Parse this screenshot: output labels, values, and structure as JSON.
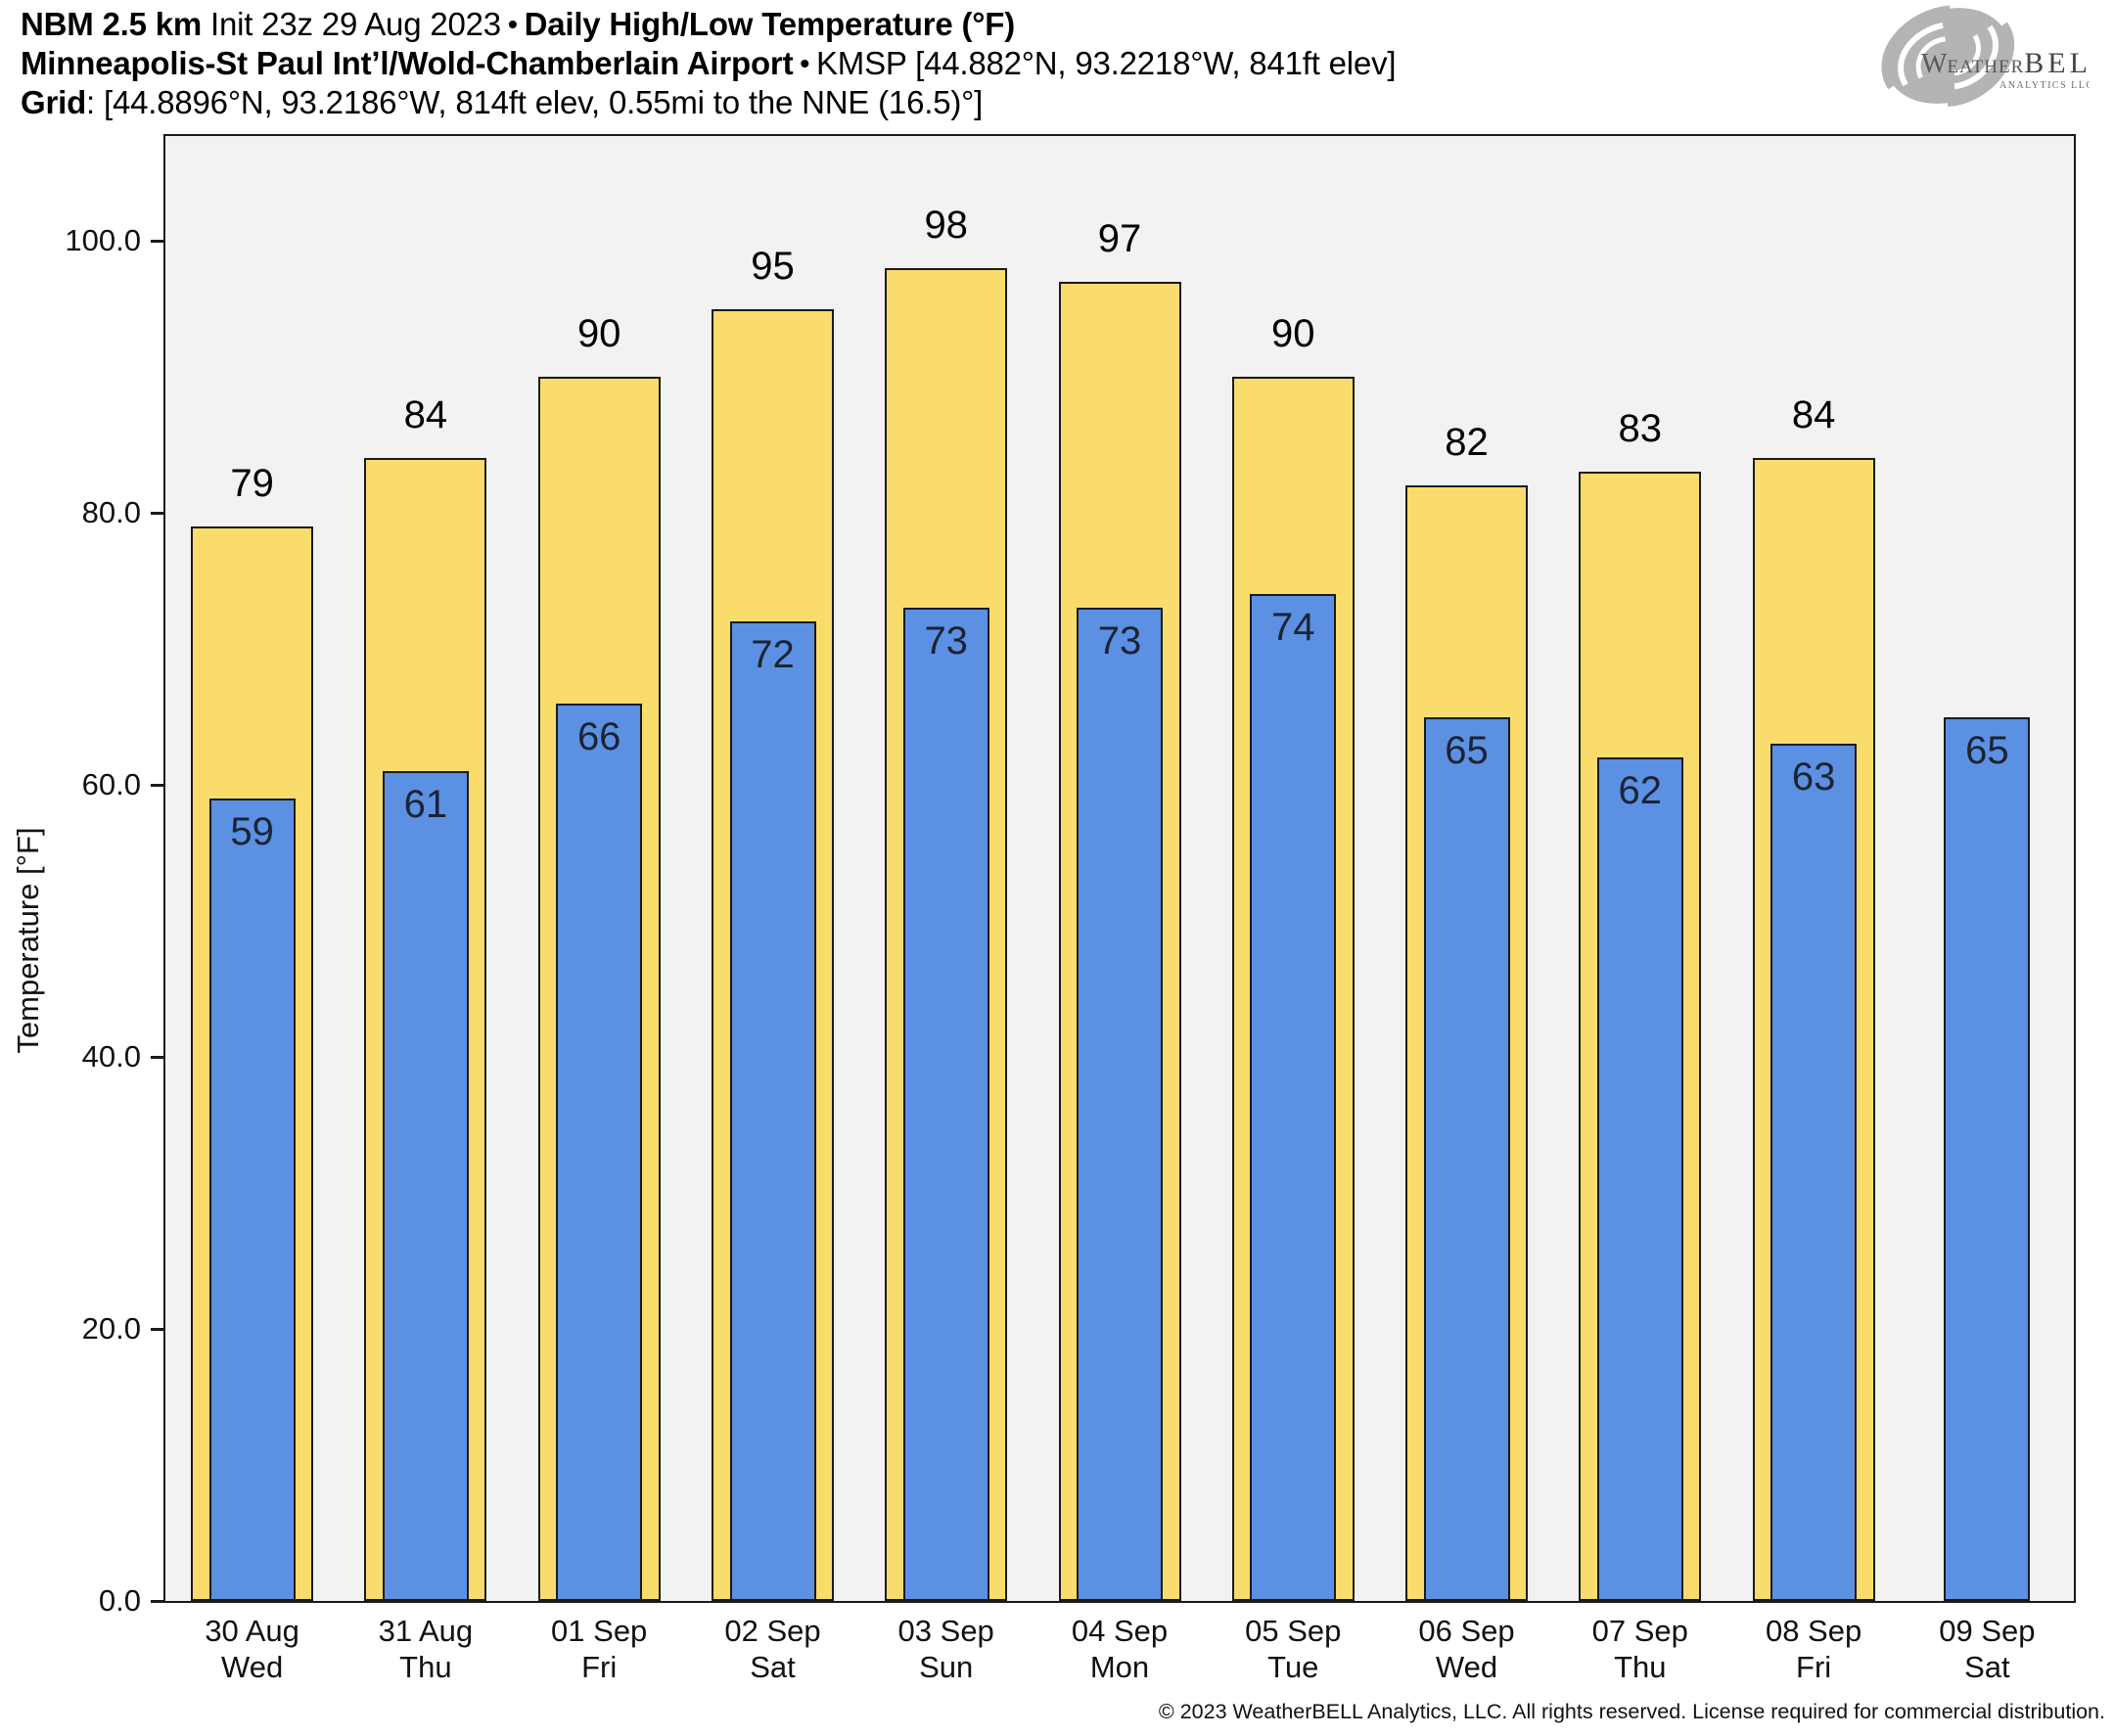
{
  "header": {
    "model": "NBM 2.5 km",
    "init": "Init 23z 29 Aug 2023",
    "bullet": "•",
    "product": "Daily High/Low Temperature (°F)",
    "station_name": "Minneapolis-St Paul Intʼl/Wold-Chamberlain Airport",
    "station_meta": "KMSP [44.882°N, 93.2218°W, 841ft elev]",
    "grid_label": "Grid",
    "grid_meta": ": [44.8896°N, 93.2186°W, 814ft elev, 0.55mi to the NNE (16.5)°]"
  },
  "logo": {
    "brand_weather": "Weather",
    "brand_bell": "BELL",
    "subtitle": "Analytics LLC"
  },
  "footer": {
    "copyright": "© 2023 WeatherBELL Analytics, LLC. All rights reserved. License required for commercial distribution."
  },
  "chart_data": {
    "type": "bar",
    "title": "Daily High/Low Temperature (°F) — NBM 2.5 km, KMSP",
    "ylabel": "Temperature [°F]",
    "xlabel": "",
    "ylim": [
      0,
      107.7
    ],
    "yticks": [
      0,
      20,
      40,
      60,
      80,
      100
    ],
    "ytick_labels": [
      "0.0",
      "20.0",
      "40.0",
      "60.0",
      "80.0",
      "100.0"
    ],
    "grid": false,
    "legend": "none",
    "plot_bg": "#F2F2F2",
    "bar_outline": "#1a1a1a",
    "categories": [
      {
        "date": "30 Aug",
        "day": "Wed"
      },
      {
        "date": "31 Aug",
        "day": "Thu"
      },
      {
        "date": "01 Sep",
        "day": "Fri"
      },
      {
        "date": "02 Sep",
        "day": "Sat"
      },
      {
        "date": "03 Sep",
        "day": "Sun"
      },
      {
        "date": "04 Sep",
        "day": "Mon"
      },
      {
        "date": "05 Sep",
        "day": "Tue"
      },
      {
        "date": "06 Sep",
        "day": "Wed"
      },
      {
        "date": "07 Sep",
        "day": "Thu"
      },
      {
        "date": "08 Sep",
        "day": "Fri"
      },
      {
        "date": "09 Sep",
        "day": "Sat"
      }
    ],
    "series": [
      {
        "name": "Daily High",
        "color": "#FADC6C",
        "values": [
          79,
          84,
          90,
          95,
          98,
          97,
          90,
          82,
          83,
          84,
          null
        ]
      },
      {
        "name": "Daily Low",
        "color": "#5C90E2",
        "values": [
          59,
          61,
          66,
          72,
          73,
          73,
          74,
          65,
          62,
          63,
          65
        ]
      }
    ]
  }
}
